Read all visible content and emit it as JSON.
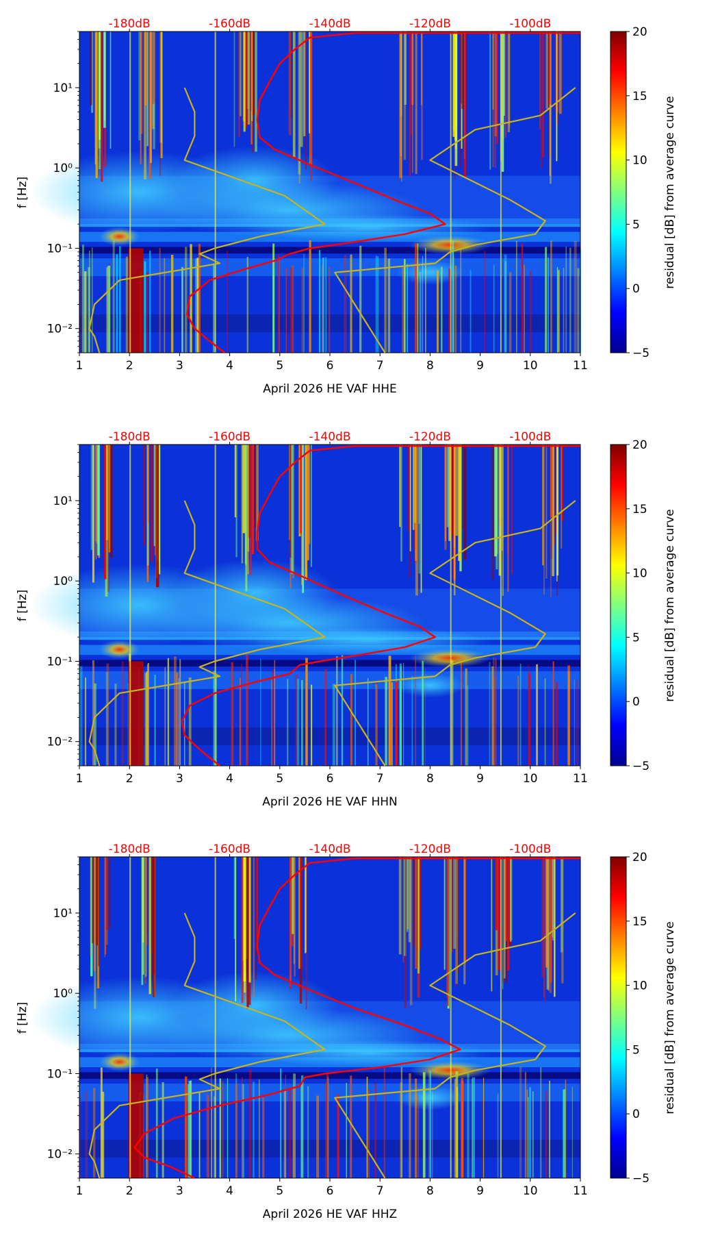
{
  "chart_data": [
    {
      "type": "heatmap",
      "title": "",
      "xlabel": "April 2026 HE VAF  HHE",
      "ylabel": "f [Hz]",
      "xlim": [
        1,
        11
      ],
      "ylim": [
        0.005,
        50
      ],
      "yscale": "log",
      "x_ticks": [
        "1",
        "2",
        "3",
        "4",
        "5",
        "6",
        "7",
        "8",
        "9",
        "10",
        "11"
      ],
      "y_ticks": [
        "10⁻²",
        "10⁻¹",
        "10⁰",
        "10¹"
      ],
      "db_ticks": [
        "-180dB",
        "-160dB",
        "-140dB",
        "-120dB",
        "-100dB"
      ],
      "colorbar": {
        "label": "residual [dB] from average curve",
        "range": [
          -5,
          20
        ],
        "ticks": [
          "−5",
          "0",
          "5",
          "10",
          "15",
          "20"
        ]
      },
      "series": [
        {
          "name": "average curve",
          "color": "#ff0000",
          "points": [
            [
              3.9,
              0.005
            ],
            [
              3.6,
              0.007
            ],
            [
              3.3,
              0.01
            ],
            [
              3.15,
              0.015
            ],
            [
              3.2,
              0.025
            ],
            [
              3.6,
              0.04
            ],
            [
              4.3,
              0.055
            ],
            [
              4.9,
              0.07
            ],
            [
              5.2,
              0.085
            ],
            [
              5.6,
              0.1
            ],
            [
              6.5,
              0.12
            ],
            [
              7.5,
              0.15
            ],
            [
              8.3,
              0.2
            ],
            [
              8.0,
              0.27
            ],
            [
              7.3,
              0.4
            ],
            [
              6.5,
              0.65
            ],
            [
              5.6,
              1.1
            ],
            [
              4.9,
              1.7
            ],
            [
              4.6,
              2.4
            ],
            [
              4.55,
              4
            ],
            [
              4.6,
              7
            ],
            [
              4.8,
              12
            ],
            [
              5.0,
              20
            ],
            [
              5.3,
              30
            ],
            [
              5.6,
              42
            ],
            [
              6.5,
              48
            ],
            [
              11,
              48
            ]
          ]
        },
        {
          "name": "noise model high",
          "color": "#c8b41e",
          "points": [
            [
              7.1,
              0.005
            ],
            [
              6.1,
              0.05
            ],
            [
              8.1,
              0.065
            ],
            [
              8.4,
              0.09
            ],
            [
              8.9,
              0.11
            ],
            [
              10.1,
              0.15
            ],
            [
              10.3,
              0.22
            ],
            [
              9.6,
              0.4
            ],
            [
              8.0,
              1.25
            ],
            [
              8.9,
              3.0
            ],
            [
              10.2,
              4.5
            ],
            [
              10.9,
              10
            ]
          ]
        },
        {
          "name": "noise model low",
          "color": "#c8b41e",
          "points": [
            [
              1.4,
              0.005
            ],
            [
              1.3,
              0.008
            ],
            [
              1.2,
              0.01
            ],
            [
              1.3,
              0.02
            ],
            [
              1.8,
              0.04
            ],
            [
              3.8,
              0.065
            ],
            [
              3.4,
              0.085
            ],
            [
              3.7,
              0.1
            ],
            [
              4.6,
              0.14
            ],
            [
              5.9,
              0.2
            ],
            [
              5.1,
              0.45
            ],
            [
              3.1,
              1.25
            ],
            [
              3.3,
              2.5
            ],
            [
              3.3,
              5
            ],
            [
              3.1,
              10
            ]
          ]
        }
      ]
    },
    {
      "type": "heatmap",
      "title": "",
      "xlabel": "April 2026 HE VAF  HHN",
      "ylabel": "f [Hz]",
      "xlim": [
        1,
        11
      ],
      "ylim": [
        0.005,
        50
      ],
      "yscale": "log",
      "x_ticks": [
        "1",
        "2",
        "3",
        "4",
        "5",
        "6",
        "7",
        "8",
        "9",
        "10",
        "11"
      ],
      "y_ticks": [
        "10⁻²",
        "10⁻¹",
        "10⁰",
        "10¹"
      ],
      "db_ticks": [
        "-180dB",
        "-160dB",
        "-140dB",
        "-120dB",
        "-100dB"
      ],
      "colorbar": {
        "label": "residual [dB] from average curve",
        "range": [
          -5,
          20
        ],
        "ticks": [
          "−5",
          "0",
          "5",
          "10",
          "15",
          "20"
        ]
      },
      "series": [
        {
          "name": "average curve",
          "color": "#ff0000",
          "points": [
            [
              3.8,
              0.005
            ],
            [
              3.4,
              0.008
            ],
            [
              3.1,
              0.012
            ],
            [
              3.05,
              0.018
            ],
            [
              3.2,
              0.028
            ],
            [
              3.7,
              0.04
            ],
            [
              4.5,
              0.055
            ],
            [
              5.2,
              0.07
            ],
            [
              5.4,
              0.09
            ],
            [
              5.8,
              0.1
            ],
            [
              6.6,
              0.12
            ],
            [
              7.5,
              0.15
            ],
            [
              8.1,
              0.2
            ],
            [
              7.8,
              0.27
            ],
            [
              7.1,
              0.4
            ],
            [
              6.3,
              0.65
            ],
            [
              5.5,
              1.1
            ],
            [
              4.8,
              1.7
            ],
            [
              4.55,
              2.5
            ],
            [
              4.55,
              4
            ],
            [
              4.6,
              7
            ],
            [
              4.8,
              12
            ],
            [
              5.0,
              20
            ],
            [
              5.3,
              30
            ],
            [
              5.6,
              42
            ],
            [
              6.5,
              48
            ],
            [
              11,
              48
            ]
          ]
        },
        {
          "name": "noise model high",
          "color": "#c8b41e",
          "points": [
            [
              7.1,
              0.005
            ],
            [
              6.1,
              0.05
            ],
            [
              8.1,
              0.065
            ],
            [
              8.4,
              0.09
            ],
            [
              8.9,
              0.11
            ],
            [
              10.1,
              0.15
            ],
            [
              10.3,
              0.22
            ],
            [
              9.6,
              0.4
            ],
            [
              8.0,
              1.25
            ],
            [
              8.9,
              3.0
            ],
            [
              10.2,
              4.5
            ],
            [
              10.9,
              10
            ]
          ]
        },
        {
          "name": "noise model low",
          "color": "#c8b41e",
          "points": [
            [
              1.4,
              0.005
            ],
            [
              1.3,
              0.008
            ],
            [
              1.2,
              0.01
            ],
            [
              1.3,
              0.02
            ],
            [
              1.8,
              0.04
            ],
            [
              3.8,
              0.065
            ],
            [
              3.4,
              0.085
            ],
            [
              3.7,
              0.1
            ],
            [
              4.6,
              0.14
            ],
            [
              5.9,
              0.2
            ],
            [
              5.1,
              0.45
            ],
            [
              3.1,
              1.25
            ],
            [
              3.3,
              2.5
            ],
            [
              3.3,
              5
            ],
            [
              3.1,
              10
            ]
          ]
        }
      ]
    },
    {
      "type": "heatmap",
      "title": "",
      "xlabel": "April 2026 HE VAF  HHZ",
      "ylabel": "f [Hz]",
      "xlim": [
        1,
        11
      ],
      "ylim": [
        0.005,
        50
      ],
      "yscale": "log",
      "x_ticks": [
        "1",
        "2",
        "3",
        "4",
        "5",
        "6",
        "7",
        "8",
        "9",
        "10",
        "11"
      ],
      "y_ticks": [
        "10⁻²",
        "10⁻¹",
        "10⁰",
        "10¹"
      ],
      "db_ticks": [
        "-180dB",
        "-160dB",
        "-140dB",
        "-120dB",
        "-100dB"
      ],
      "colorbar": {
        "label": "residual [dB] from average curve",
        "range": [
          -5,
          20
        ],
        "ticks": [
          "−5",
          "0",
          "5",
          "10",
          "15",
          "20"
        ]
      },
      "series": [
        {
          "name": "average curve",
          "color": "#ff0000",
          "points": [
            [
              3.3,
              0.005
            ],
            [
              2.8,
              0.007
            ],
            [
              2.3,
              0.009
            ],
            [
              2.1,
              0.012
            ],
            [
              2.3,
              0.018
            ],
            [
              2.9,
              0.028
            ],
            [
              3.8,
              0.04
            ],
            [
              4.8,
              0.055
            ],
            [
              5.4,
              0.07
            ],
            [
              5.5,
              0.09
            ],
            [
              5.9,
              0.1
            ],
            [
              7.0,
              0.12
            ],
            [
              8.0,
              0.15
            ],
            [
              8.6,
              0.2
            ],
            [
              8.2,
              0.27
            ],
            [
              7.5,
              0.4
            ],
            [
              6.5,
              0.65
            ],
            [
              5.6,
              1.1
            ],
            [
              4.9,
              1.7
            ],
            [
              4.6,
              2.4
            ],
            [
              4.55,
              4
            ],
            [
              4.6,
              7
            ],
            [
              4.8,
              12
            ],
            [
              5.0,
              20
            ],
            [
              5.3,
              30
            ],
            [
              5.6,
              42
            ],
            [
              6.5,
              48
            ],
            [
              11,
              48
            ]
          ]
        },
        {
          "name": "noise model high",
          "color": "#c8b41e",
          "points": [
            [
              7.1,
              0.005
            ],
            [
              6.1,
              0.05
            ],
            [
              8.1,
              0.065
            ],
            [
              8.4,
              0.09
            ],
            [
              8.9,
              0.11
            ],
            [
              10.1,
              0.15
            ],
            [
              10.3,
              0.22
            ],
            [
              9.6,
              0.4
            ],
            [
              8.0,
              1.25
            ],
            [
              8.9,
              3.0
            ],
            [
              10.2,
              4.5
            ],
            [
              10.9,
              10
            ]
          ]
        },
        {
          "name": "noise model low",
          "color": "#c8b41e",
          "points": [
            [
              1.4,
              0.005
            ],
            [
              1.3,
              0.008
            ],
            [
              1.2,
              0.01
            ],
            [
              1.3,
              0.02
            ],
            [
              1.8,
              0.04
            ],
            [
              3.8,
              0.065
            ],
            [
              3.4,
              0.085
            ],
            [
              3.7,
              0.1
            ],
            [
              4.6,
              0.14
            ],
            [
              5.9,
              0.2
            ],
            [
              5.1,
              0.45
            ],
            [
              3.1,
              1.25
            ],
            [
              3.3,
              2.5
            ],
            [
              3.3,
              5
            ],
            [
              3.1,
              10
            ]
          ]
        }
      ]
    }
  ]
}
